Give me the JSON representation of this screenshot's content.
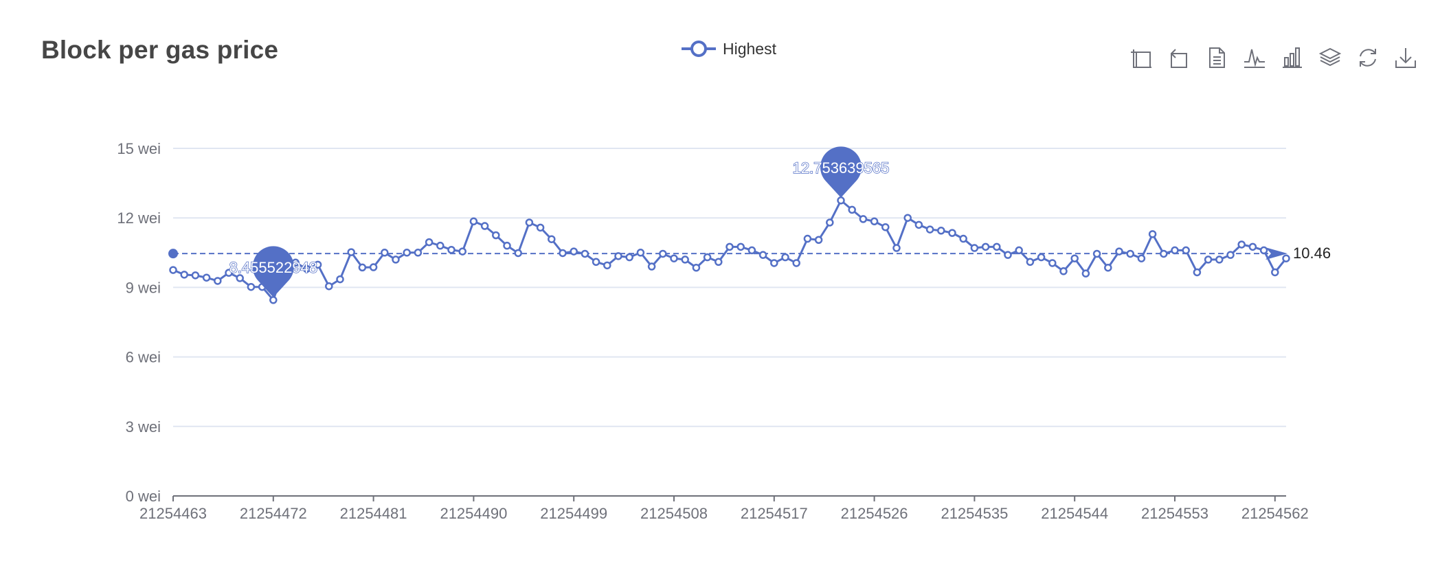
{
  "title": "Block per gas price",
  "legend": {
    "label": "Highest"
  },
  "toolbox": {
    "items": [
      {
        "name": "zoom-icon"
      },
      {
        "name": "zoom-reset-icon"
      },
      {
        "name": "data-view-icon"
      },
      {
        "name": "line-chart-icon"
      },
      {
        "name": "bar-chart-icon"
      },
      {
        "name": "stack-icon"
      },
      {
        "name": "restore-icon"
      },
      {
        "name": "download-icon"
      }
    ]
  },
  "colors": {
    "series": "#5470c6",
    "axis": "#6e7079",
    "grid": "#e0e6f1",
    "title": "#464646"
  },
  "chart_data": {
    "type": "line",
    "title": "Block per gas price",
    "y_unit": "wei",
    "ylim": [
      0,
      15
    ],
    "yticks": [
      "0 wei",
      "3 wei",
      "6 wei",
      "9 wei",
      "12 wei",
      "15 wei"
    ],
    "xtick_labels": [
      "21254463",
      "21254472",
      "21254481",
      "21254490",
      "21254499",
      "21254508",
      "21254517",
      "21254526",
      "21254535",
      "21254544",
      "21254553",
      "21254562"
    ],
    "x_start": 21254463,
    "x_end": 21254563,
    "series": [
      {
        "name": "Highest",
        "values": [
          9.75,
          9.55,
          9.52,
          9.42,
          9.28,
          9.63,
          9.4,
          9.02,
          9.02,
          8.455522948,
          9.84,
          10.07,
          9.8,
          9.98,
          9.05,
          9.35,
          10.52,
          9.86,
          9.87,
          10.5,
          10.2,
          10.5,
          10.5,
          10.95,
          10.8,
          10.62,
          10.55,
          11.85,
          11.65,
          11.25,
          10.8,
          10.48,
          11.8,
          11.58,
          11.08,
          10.48,
          10.55,
          10.45,
          10.1,
          9.95,
          10.35,
          10.3,
          10.5,
          9.9,
          10.45,
          10.25,
          10.2,
          9.85,
          10.3,
          10.1,
          10.75,
          10.75,
          10.6,
          10.4,
          10.05,
          10.3,
          10.05,
          11.1,
          11.05,
          11.8,
          12.753639565,
          12.35,
          11.95,
          11.85,
          11.6,
          10.7,
          12.0,
          11.7,
          11.5,
          11.45,
          11.35,
          11.1,
          10.7,
          10.75,
          10.75,
          10.4,
          10.6,
          10.1,
          10.3,
          10.05,
          9.7,
          10.25,
          9.6,
          10.45,
          9.85,
          10.55,
          10.45,
          10.25,
          11.3,
          10.45,
          10.6,
          10.6,
          9.65,
          10.2,
          10.2,
          10.4,
          10.85,
          10.75,
          10.6,
          9.65,
          10.25
        ]
      }
    ],
    "mark_points": [
      {
        "label": "12.753639565",
        "kind": "max",
        "value": 12.753639565
      },
      {
        "label": "8.455522948",
        "kind": "min",
        "value": 8.455522948
      }
    ],
    "mark_line": {
      "label": "10.46",
      "kind": "average",
      "value": 10.46
    }
  }
}
